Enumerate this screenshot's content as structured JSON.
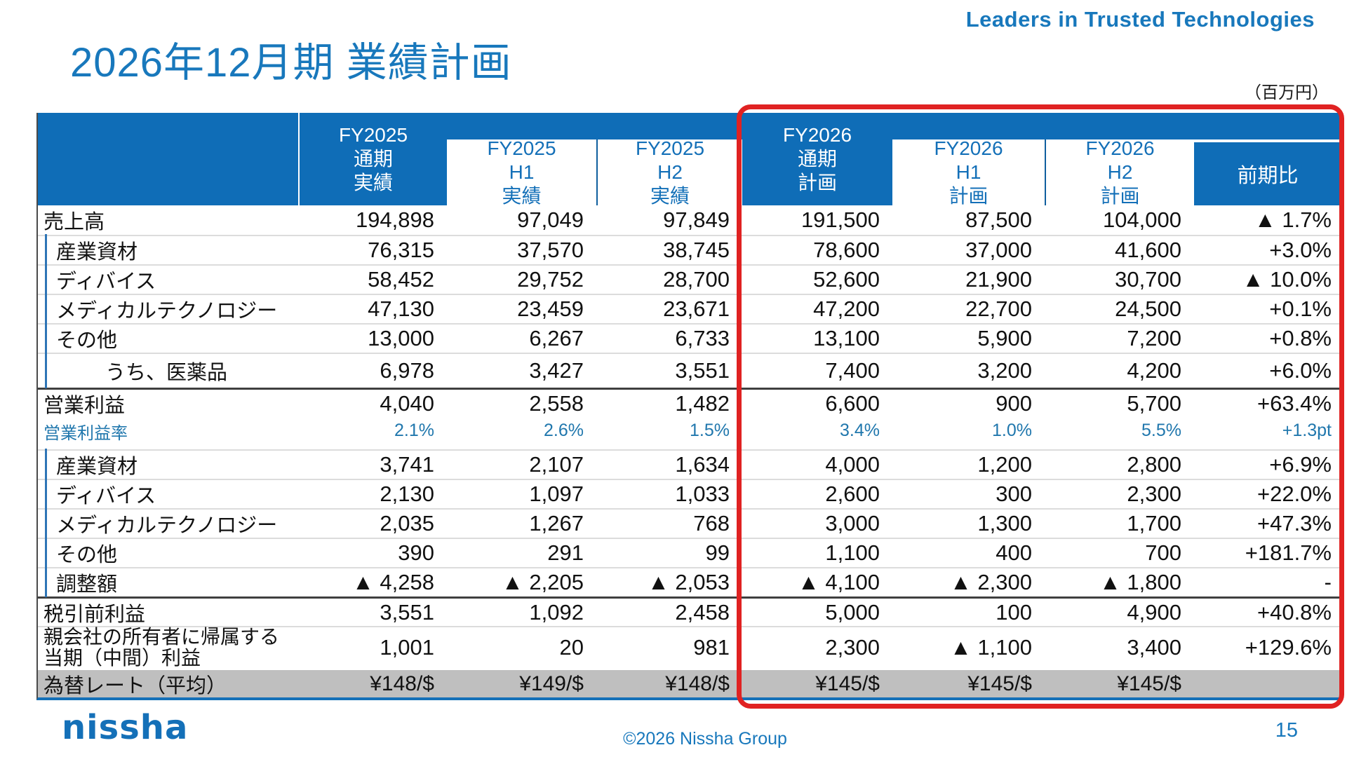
{
  "brand": {
    "tagline": "Leaders in Trusted Technologies",
    "logo_text": "nissha",
    "colors": {
      "header_blue": "#0f6db7",
      "accent_blue": "#1878bc",
      "rate_blue": "#2077ad",
      "highlight_red": "#e02222",
      "fx_row_gray": "#bfbfbf"
    }
  },
  "slide": {
    "title": "2026年12月期 業績計画",
    "unit_note": "（百万円）",
    "copyright": "©2026 Nissha Group",
    "page_number": "15"
  },
  "table": {
    "column_headers": [
      {
        "lines": [
          "FY2025",
          "通期",
          "実績"
        ],
        "variant": "solid"
      },
      {
        "lines": [
          "FY2025",
          "H1",
          "実績"
        ],
        "variant": "inset"
      },
      {
        "lines": [
          "FY2025",
          "H2",
          "実績"
        ],
        "variant": "inset"
      },
      {
        "lines": [
          "FY2026",
          "通期",
          "計画"
        ],
        "variant": "solid"
      },
      {
        "lines": [
          "FY2026",
          "H1",
          "計画"
        ],
        "variant": "inset"
      },
      {
        "lines": [
          "FY2026",
          "H2",
          "計画"
        ],
        "variant": "inset"
      },
      {
        "lines": [
          "前期比"
        ],
        "variant": "solid-sub"
      }
    ],
    "rows": [
      {
        "label": "売上高",
        "kind": "total",
        "values": [
          "194,898",
          "97,049",
          "97,849",
          "191,500",
          "87,500",
          "104,000",
          "▲ 1.7%"
        ]
      },
      {
        "label": "産業資材",
        "kind": "sub",
        "values": [
          "76,315",
          "37,570",
          "38,745",
          "78,600",
          "37,000",
          "41,600",
          "+3.0%"
        ]
      },
      {
        "label": "ディバイス",
        "kind": "sub",
        "values": [
          "58,452",
          "29,752",
          "28,700",
          "52,600",
          "21,900",
          "30,700",
          "▲ 10.0%"
        ]
      },
      {
        "label": "メディカルテクノロジー",
        "kind": "sub",
        "values": [
          "47,130",
          "23,459",
          "23,671",
          "47,200",
          "22,700",
          "24,500",
          "+0.1%"
        ]
      },
      {
        "label": "その他",
        "kind": "sub",
        "values": [
          "13,000",
          "6,267",
          "6,733",
          "13,100",
          "5,900",
          "7,200",
          "+0.8%"
        ]
      },
      {
        "label": "うち、医薬品",
        "kind": "sub2",
        "values": [
          "6,978",
          "3,427",
          "3,551",
          "7,400",
          "3,200",
          "4,200",
          "+6.0%"
        ]
      },
      {
        "label": "営業利益",
        "kind": "total section-start",
        "values": [
          "4,040",
          "2,558",
          "1,482",
          "6,600",
          "900",
          "5,700",
          "+63.4%"
        ]
      },
      {
        "label": "営業利益率",
        "kind": "rate",
        "values": [
          "2.1%",
          "2.6%",
          "1.5%",
          "3.4%",
          "1.0%",
          "5.5%",
          "+1.3pt"
        ]
      },
      {
        "label": "産業資材",
        "kind": "sub",
        "values": [
          "3,741",
          "2,107",
          "1,634",
          "4,000",
          "1,200",
          "2,800",
          "+6.9%"
        ]
      },
      {
        "label": "ディバイス",
        "kind": "sub",
        "values": [
          "2,130",
          "1,097",
          "1,033",
          "2,600",
          "300",
          "2,300",
          "+22.0%"
        ]
      },
      {
        "label": "メディカルテクノロジー",
        "kind": "sub",
        "values": [
          "2,035",
          "1,267",
          "768",
          "3,000",
          "1,300",
          "1,700",
          "+47.3%"
        ]
      },
      {
        "label": "その他",
        "kind": "sub",
        "values": [
          "390",
          "291",
          "99",
          "1,100",
          "400",
          "700",
          "+181.7%"
        ]
      },
      {
        "label": "調整額",
        "kind": "sub",
        "values": [
          "▲ 4,258",
          "▲ 2,205",
          "▲ 2,053",
          "▲ 4,100",
          "▲ 2,300",
          "▲ 1,800",
          "-"
        ]
      },
      {
        "label": "税引前利益",
        "kind": "total section-start",
        "values": [
          "3,551",
          "1,092",
          "2,458",
          "5,000",
          "100",
          "4,900",
          "+40.8%"
        ]
      },
      {
        "label": "親会社の所有者に帰属する当期（中間）利益",
        "label_lines": [
          "親会社の所有者に帰属する",
          "当期（中間）利益"
        ],
        "kind": "total tall",
        "values": [
          "1,001",
          "20",
          "981",
          "2,300",
          "▲ 1,100",
          "3,400",
          "+129.6%"
        ]
      },
      {
        "label": "為替レート（平均）",
        "kind": "fx",
        "values": [
          "¥148/$",
          "¥149/$",
          "¥148/$",
          "¥145/$",
          "¥145/$",
          "¥145/$",
          ""
        ]
      }
    ]
  }
}
